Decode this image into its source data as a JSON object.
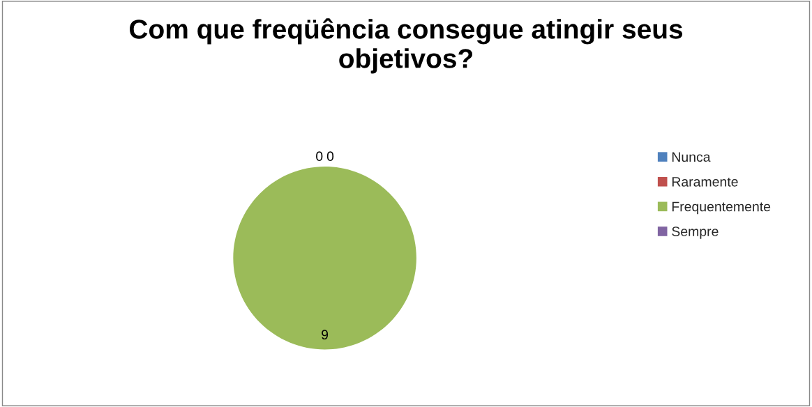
{
  "chart_data": {
    "type": "pie",
    "title": "Com que freqüência consegue atingir seus objetivos?",
    "categories": [
      "Nunca",
      "Raramente",
      "Frequentemente",
      "Sempre"
    ],
    "values": [
      0,
      0,
      9,
      0
    ],
    "colors": [
      "#4f81bd",
      "#c0504d",
      "#9bbb59",
      "#8064a2"
    ],
    "value_labels": [
      "0",
      "0",
      "9",
      null
    ],
    "legend": "right"
  }
}
